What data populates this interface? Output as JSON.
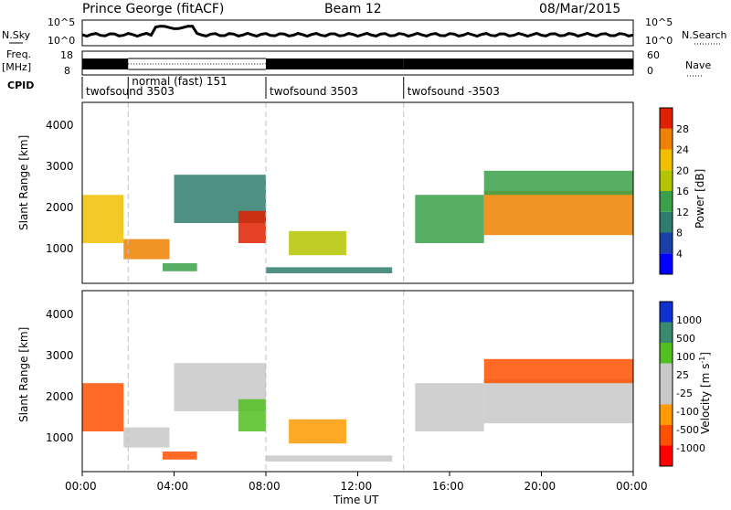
{
  "header": {
    "station": "Prince George (fitACF)",
    "beam": "Beam 12",
    "date": "08/Mar/2015"
  },
  "strip": {
    "nsky_label": "N.Sky",
    "nsky_ticks": [
      "10^5",
      "10^0"
    ],
    "nsearch_label": "N.Search",
    "nsearch_ticks": [
      "10^5",
      "10^0"
    ],
    "freq_label": "Freq.",
    "freq_unit": "[MHz]",
    "freq_ticks": [
      "18",
      "8"
    ],
    "nave_label": "Nave",
    "nave_ticks": [
      "60",
      "0"
    ],
    "cpid_label": "CPID",
    "cpid_segments": [
      {
        "label": "twofsound 3503",
        "start_h": 0,
        "end_h": 2
      },
      {
        "label": "normal (fast) 151",
        "start_h": 2,
        "end_h": 8
      },
      {
        "label": "twofsound 3503",
        "start_h": 8,
        "end_h": 14
      },
      {
        "label": "twofsound -3503",
        "start_h": 14,
        "end_h": 24
      }
    ]
  },
  "panel_power": {
    "ylabel": "Slant Range [km]",
    "yticks": [
      "4000",
      "3000",
      "2000",
      "1000"
    ],
    "colorbar_label": "Power [dB]",
    "colorbar_ticks": [
      "28",
      "24",
      "20",
      "16",
      "12",
      "8",
      "4"
    ]
  },
  "panel_velocity": {
    "ylabel": "Slant Range [km]",
    "yticks": [
      "4000",
      "3000",
      "2000",
      "1000"
    ],
    "colorbar_label": "Velocity [m s",
    "colorbar_unit_sup": "-1",
    "colorbar_unit_close": "]",
    "colorbar_ticks": [
      "1000",
      "500",
      "100",
      "25",
      "-25",
      "-100",
      "-500",
      "-1000"
    ]
  },
  "xaxis": {
    "label": "Time UT",
    "ticks": [
      "00:00",
      "04:00",
      "08:00",
      "12:00",
      "16:00",
      "20:00",
      "00:00"
    ]
  },
  "colors": {
    "power_scale": [
      "#0000ff",
      "#1a3fa8",
      "#2f7d6e",
      "#3aa04a",
      "#b5c400",
      "#f0c000",
      "#f08000",
      "#e02000"
    ],
    "velocity_scale": [
      "#ff0000",
      "#ff5000",
      "#ff9a00",
      "#c8c8c8",
      "#c8c8c8",
      "#50c020",
      "#3a8a70",
      "#1030d0"
    ],
    "separator": "#c0c0c0"
  },
  "chart_data": [
    {
      "type": "heatmap",
      "title": "",
      "quantity": "Power [dB]",
      "xlabel": "Time UT",
      "ylabel": "Slant Range [km]",
      "x_range_h": [
        0,
        24
      ],
      "ylim": [
        0,
        4500
      ],
      "colorbar_range": [
        0,
        30
      ],
      "bands": [
        {
          "t_start": 0.0,
          "t_end": 1.8,
          "r_low": 1000,
          "r_high": 2200,
          "power": 22
        },
        {
          "t_start": 1.8,
          "t_end": 3.8,
          "r_low": 600,
          "r_high": 1100,
          "power": 26
        },
        {
          "t_start": 3.5,
          "t_end": 5.0,
          "r_low": 300,
          "r_high": 500,
          "power": 14
        },
        {
          "t_start": 4.0,
          "t_end": 8.0,
          "r_low": 1500,
          "r_high": 2700,
          "power": 9
        },
        {
          "t_start": 6.8,
          "t_end": 8.0,
          "r_low": 1000,
          "r_high": 1800,
          "power": 28
        },
        {
          "t_start": 9.0,
          "t_end": 11.5,
          "r_low": 700,
          "r_high": 1300,
          "power": 16
        },
        {
          "t_start": 8.0,
          "t_end": 13.5,
          "r_low": 250,
          "r_high": 400,
          "power": 10
        },
        {
          "t_start": 14.5,
          "t_end": 17.5,
          "r_low": 1000,
          "r_high": 2200,
          "power": 14
        },
        {
          "t_start": 17.5,
          "t_end": 24.0,
          "r_low": 1200,
          "r_high": 2300,
          "power": 24
        },
        {
          "t_start": 17.5,
          "t_end": 24.0,
          "r_low": 2200,
          "r_high": 2800,
          "power": 12
        }
      ]
    },
    {
      "type": "heatmap",
      "title": "",
      "quantity": "Velocity [m s-1]",
      "xlabel": "Time UT",
      "ylabel": "Slant Range [km]",
      "x_range_h": [
        0,
        24
      ],
      "ylim": [
        0,
        4500
      ],
      "colorbar_range": [
        -1000,
        1000
      ],
      "bands": [
        {
          "t_start": 0.0,
          "t_end": 1.8,
          "r_low": 1000,
          "r_high": 2200,
          "velocity": -200
        },
        {
          "t_start": 1.8,
          "t_end": 3.8,
          "r_low": 600,
          "r_high": 1100,
          "velocity": 0
        },
        {
          "t_start": 3.5,
          "t_end": 5.0,
          "r_low": 300,
          "r_high": 500,
          "velocity": -150
        },
        {
          "t_start": 4.0,
          "t_end": 8.0,
          "r_low": 1500,
          "r_high": 2700,
          "velocity": 0
        },
        {
          "t_start": 6.8,
          "t_end": 8.0,
          "r_low": 1000,
          "r_high": 1800,
          "velocity": 300
        },
        {
          "t_start": 9.0,
          "t_end": 11.5,
          "r_low": 700,
          "r_high": 1300,
          "velocity": -80
        },
        {
          "t_start": 8.0,
          "t_end": 13.5,
          "r_low": 250,
          "r_high": 400,
          "velocity": 80
        },
        {
          "t_start": 14.5,
          "t_end": 17.5,
          "r_low": 1000,
          "r_high": 2200,
          "velocity": 60
        },
        {
          "t_start": 17.5,
          "t_end": 24.0,
          "r_low": 1200,
          "r_high": 2300,
          "velocity": 0
        },
        {
          "t_start": 17.5,
          "t_end": 24.0,
          "r_low": 2200,
          "r_high": 2800,
          "velocity": -300
        }
      ]
    }
  ]
}
